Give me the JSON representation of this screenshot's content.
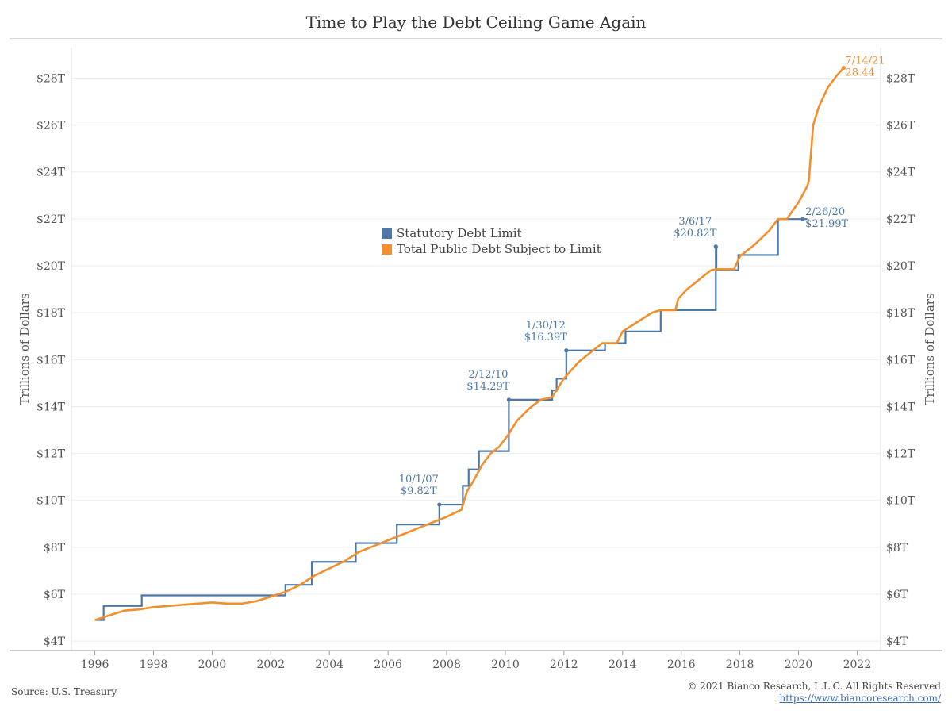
{
  "title": "Time to Play the Debt Ceiling Game Again",
  "source": "Source: U.S. Treasury",
  "copyright": "© 2021 Bianco Research, L.L.C. All Rights Reserved",
  "website": "https://www.biancoresearch.com/",
  "colors": {
    "limit": "#4e79a7",
    "debt": "#f28e2b",
    "grid": "#eeeeee",
    "axis": "#999999"
  },
  "chart_data": {
    "type": "line",
    "title": "Time to Play the Debt Ceiling Game Again",
    "ylabel": "Trillions of Dollars",
    "ylabel_right": "Trillions of Dollars",
    "xlim": [
      1995.2,
      2022.8
    ],
    "ylim": [
      3.6,
      29.3
    ],
    "x_ticks": [
      1996,
      1998,
      2000,
      2002,
      2004,
      2006,
      2008,
      2010,
      2012,
      2014,
      2016,
      2018,
      2020,
      2022
    ],
    "x_tick_labels": [
      "1996",
      "1998",
      "2000",
      "2002",
      "2004",
      "2006",
      "2008",
      "2010",
      "2012",
      "2014",
      "2016",
      "2018",
      "2020",
      "2022"
    ],
    "y_ticks": [
      4,
      6,
      8,
      10,
      12,
      14,
      16,
      18,
      20,
      22,
      24,
      26,
      28
    ],
    "y_tick_labels": [
      "$4T",
      "$6T",
      "$8T",
      "$10T",
      "$12T",
      "$14T",
      "$16T",
      "$18T",
      "$20T",
      "$22T",
      "$24T",
      "$26T",
      "$28T"
    ],
    "grid": true,
    "legend_position": "center-left",
    "series": [
      {
        "name": "Statutory Debt Limit",
        "style": "step",
        "x": [
          1996.0,
          1996.3,
          1997.6,
          2002.5,
          2003.4,
          2004.9,
          2006.3,
          2007.75,
          2008.55,
          2008.75,
          2009.1,
          2010.12,
          2011.6,
          2011.75,
          2012.08,
          2013.4,
          2014.1,
          2015.3,
          2017.18,
          2017.2,
          2017.95,
          2019.3,
          2020.15
        ],
        "y": [
          4.9,
          5.5,
          5.95,
          6.4,
          7.38,
          8.18,
          8.97,
          9.82,
          10.62,
          11.32,
          12.1,
          14.29,
          14.69,
          15.19,
          16.39,
          16.7,
          17.2,
          18.11,
          20.82,
          19.81,
          20.46,
          21.99,
          21.99
        ]
      },
      {
        "name": "Total Public Debt Subject to Limit",
        "style": "line",
        "x": [
          1996.0,
          1996.5,
          1997.0,
          1997.5,
          1998.0,
          1998.5,
          1999.0,
          1999.5,
          2000.0,
          2000.5,
          2001.0,
          2001.5,
          2002.0,
          2002.5,
          2003.0,
          2003.5,
          2004.0,
          2004.5,
          2005.0,
          2005.5,
          2006.0,
          2006.5,
          2007.0,
          2007.5,
          2008.0,
          2008.5,
          2008.7,
          2008.9,
          2009.2,
          2009.5,
          2009.8,
          2010.1,
          2010.4,
          2010.8,
          2011.2,
          2011.6,
          2012.0,
          2012.5,
          2013.0,
          2013.3,
          2013.8,
          2014.0,
          2014.5,
          2015.0,
          2015.3,
          2015.8,
          2015.9,
          2016.2,
          2016.6,
          2017.0,
          2017.2,
          2017.8,
          2018.0,
          2018.5,
          2019.0,
          2019.3,
          2019.6,
          2020.0,
          2020.3,
          2020.35,
          2020.5,
          2020.7,
          2021.0,
          2021.3,
          2021.54
        ],
        "y": [
          4.9,
          5.1,
          5.3,
          5.35,
          5.45,
          5.5,
          5.55,
          5.6,
          5.65,
          5.6,
          5.6,
          5.7,
          5.9,
          6.1,
          6.4,
          6.8,
          7.1,
          7.4,
          7.8,
          8.05,
          8.3,
          8.55,
          8.8,
          9.05,
          9.3,
          9.6,
          10.4,
          10.8,
          11.5,
          12.0,
          12.3,
          12.8,
          13.4,
          13.9,
          14.29,
          14.4,
          15.2,
          15.9,
          16.4,
          16.7,
          16.7,
          17.2,
          17.6,
          18.0,
          18.11,
          18.11,
          18.6,
          19.0,
          19.4,
          19.8,
          19.85,
          19.85,
          20.4,
          20.9,
          21.5,
          21.99,
          21.99,
          22.7,
          23.4,
          23.6,
          26.0,
          26.8,
          27.6,
          28.1,
          28.44
        ]
      }
    ],
    "annotations": [
      {
        "date": "10/1/07",
        "value": "$9.82T",
        "x": 2007.75,
        "y": 9.82,
        "series": "limit"
      },
      {
        "date": "2/12/10",
        "value": "$14.29T",
        "x": 2010.12,
        "y": 14.29,
        "series": "limit"
      },
      {
        "date": "1/30/12",
        "value": "$16.39T",
        "x": 2012.08,
        "y": 16.39,
        "series": "limit"
      },
      {
        "date": "3/6/17",
        "value": "$20.82T",
        "x": 2017.18,
        "y": 20.82,
        "series": "limit"
      },
      {
        "date": "2/26/20",
        "value": "$21.99T",
        "x": 2020.15,
        "y": 21.99,
        "series": "limit"
      },
      {
        "date": "7/14/21",
        "value": "28.44",
        "x": 2021.54,
        "y": 28.44,
        "series": "debt"
      }
    ]
  }
}
